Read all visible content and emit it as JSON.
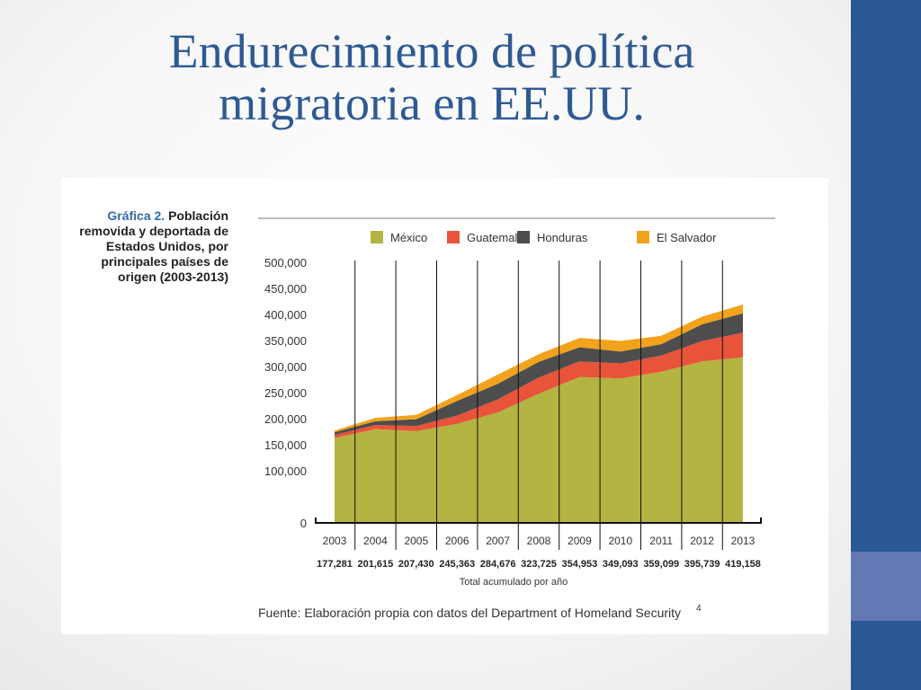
{
  "slide": {
    "title": "Endurecimiento de política migratoria en EE.UU.",
    "footnote_mark": "4"
  },
  "figure": {
    "caption_number": "Gráfica 2.",
    "caption_text": "Población removida y deportada de Estados Unidos, por principales países de origen (2003-2013)",
    "source": "Fuente: Elaboración propia con datos del Department of Homeland Security",
    "totals_label": "Total acumulado por año"
  },
  "chart_data": {
    "type": "area",
    "stacked": true,
    "title": "Gráfica 2. Población removida y deportada de Estados Unidos, por principales países de origen (2003-2013)",
    "x": [
      "2003",
      "2004",
      "2005",
      "2006",
      "2007",
      "2008",
      "2009",
      "2010",
      "2011",
      "2012",
      "2013"
    ],
    "totals": [
      "177,281",
      "201,615",
      "207,430",
      "245,363",
      "284,676",
      "323,725",
      "354,953",
      "349,093",
      "359,099",
      "395,739",
      "419,158"
    ],
    "yticks": [
      "500,000",
      "450,000",
      "400,000",
      "350,000",
      "300,000",
      "250,000",
      "200,000",
      "150,000",
      "100,000",
      "0"
    ],
    "series": [
      {
        "name": "México",
        "color": "#b3b441",
        "values": [
          163000,
          180000,
          176000,
          190000,
          212000,
          248000,
          280000,
          277000,
          290000,
          310000,
          318000
        ]
      },
      {
        "name": "Guatemala",
        "color": "#e9533a",
        "values": [
          6000,
          8000,
          10000,
          16000,
          25000,
          31000,
          30000,
          29000,
          31000,
          39000,
          47000
        ]
      },
      {
        "name": "Honduras",
        "color": "#4d4d4d",
        "values": [
          5000,
          7000,
          13000,
          28000,
          30000,
          30000,
          27000,
          23000,
          22000,
          32000,
          37000
        ]
      },
      {
        "name": "El Salvador",
        "color": "#f2a31b",
        "values": [
          3300,
          6600,
          8400,
          11400,
          17700,
          14700,
          18000,
          20100,
          16100,
          14700,
          17200
        ]
      }
    ],
    "ylim": [
      0,
      500000
    ],
    "legend_position": "top",
    "grid": "vertical lines at each year"
  }
}
